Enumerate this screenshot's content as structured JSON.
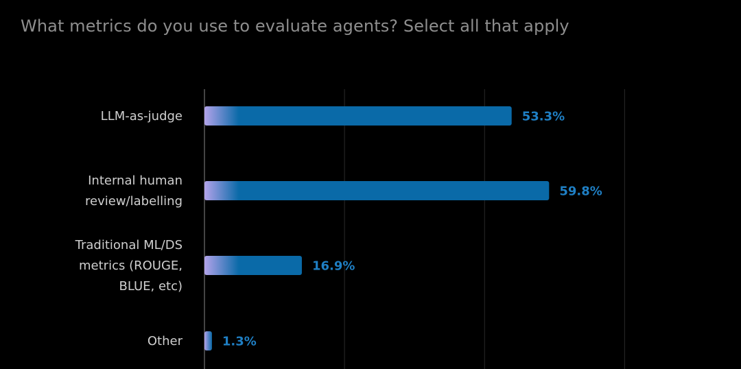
{
  "chart_data": {
    "type": "bar",
    "orientation": "horizontal",
    "title": "What metrics do you use to evaluate agents? Select all that apply",
    "categories": [
      "LLM-as-judge",
      "Internal human review/labelling",
      "Traditional ML/DS metrics (ROUGE, BLUE, etc)",
      "Other"
    ],
    "category_lines": [
      [
        "LLM-as-judge"
      ],
      [
        "Internal human",
        "review/labelling"
      ],
      [
        "Traditional ML/DS",
        "metrics (ROUGE,",
        "BLUE, etc)"
      ],
      [
        "Other"
      ]
    ],
    "values": [
      53.3,
      59.8,
      16.9,
      1.3
    ],
    "value_labels": [
      "53.3%",
      "59.8%",
      "16.9%",
      "1.3%"
    ],
    "xlim": [
      0,
      80
    ],
    "grid": true,
    "legend": "none",
    "colors": {
      "bar": "#0a6aa8",
      "gradient_start": "#b3a3ea",
      "value_text": "#1f7fc4",
      "gridline": "#2a2a2a",
      "axis": "#5a5a5a"
    }
  }
}
